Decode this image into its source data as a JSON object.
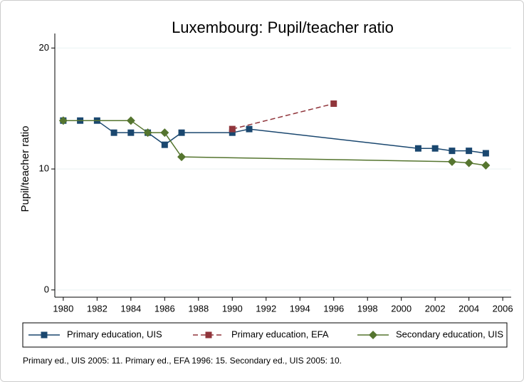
{
  "chart_data": {
    "type": "line",
    "title": "Luxembourg: Pupil/teacher ratio",
    "y_label": "Pupil/teacher ratio",
    "note": "Primary ed., UIS 2005: 11. Primary ed., EFA 1996: 15. Secondary ed., UIS 2005: 10.",
    "xlim": [
      1979.5,
      2006.5
    ],
    "xticks": [
      1980,
      1982,
      1984,
      1986,
      1988,
      1990,
      1992,
      1994,
      1996,
      1998,
      2000,
      2002,
      2004,
      2006
    ],
    "ylim": [
      -0.6,
      21.2
    ],
    "yticks": [
      0,
      10,
      20
    ],
    "grid": true,
    "legend": "bottom",
    "series": [
      {
        "name": "Primary education, UIS",
        "color": "#1a476f",
        "marker": "square",
        "dash": false,
        "x": [
          1980,
          1981,
          1982,
          1983,
          1984,
          1985,
          1986,
          1987,
          1990,
          1991,
          2001,
          2002,
          2003,
          2004,
          2005
        ],
        "values": [
          14,
          14,
          14,
          13,
          13,
          13,
          12,
          13,
          13,
          13.3,
          11.7,
          11.7,
          11.5,
          11.5,
          11.3
        ]
      },
      {
        "name": "Primary education, EFA",
        "color": "#90353b",
        "marker": "square",
        "dash": true,
        "x": [
          1990,
          1996
        ],
        "values": [
          13.3,
          15.4
        ]
      },
      {
        "name": "Secondary education, UIS",
        "color": "#55752f",
        "marker": "diamond",
        "dash": false,
        "x": [
          1980,
          1984,
          1985,
          1986,
          1987,
          2003,
          2004,
          2005
        ],
        "values": [
          14,
          14,
          13,
          13,
          11,
          10.6,
          10.5,
          10.3
        ]
      }
    ]
  }
}
